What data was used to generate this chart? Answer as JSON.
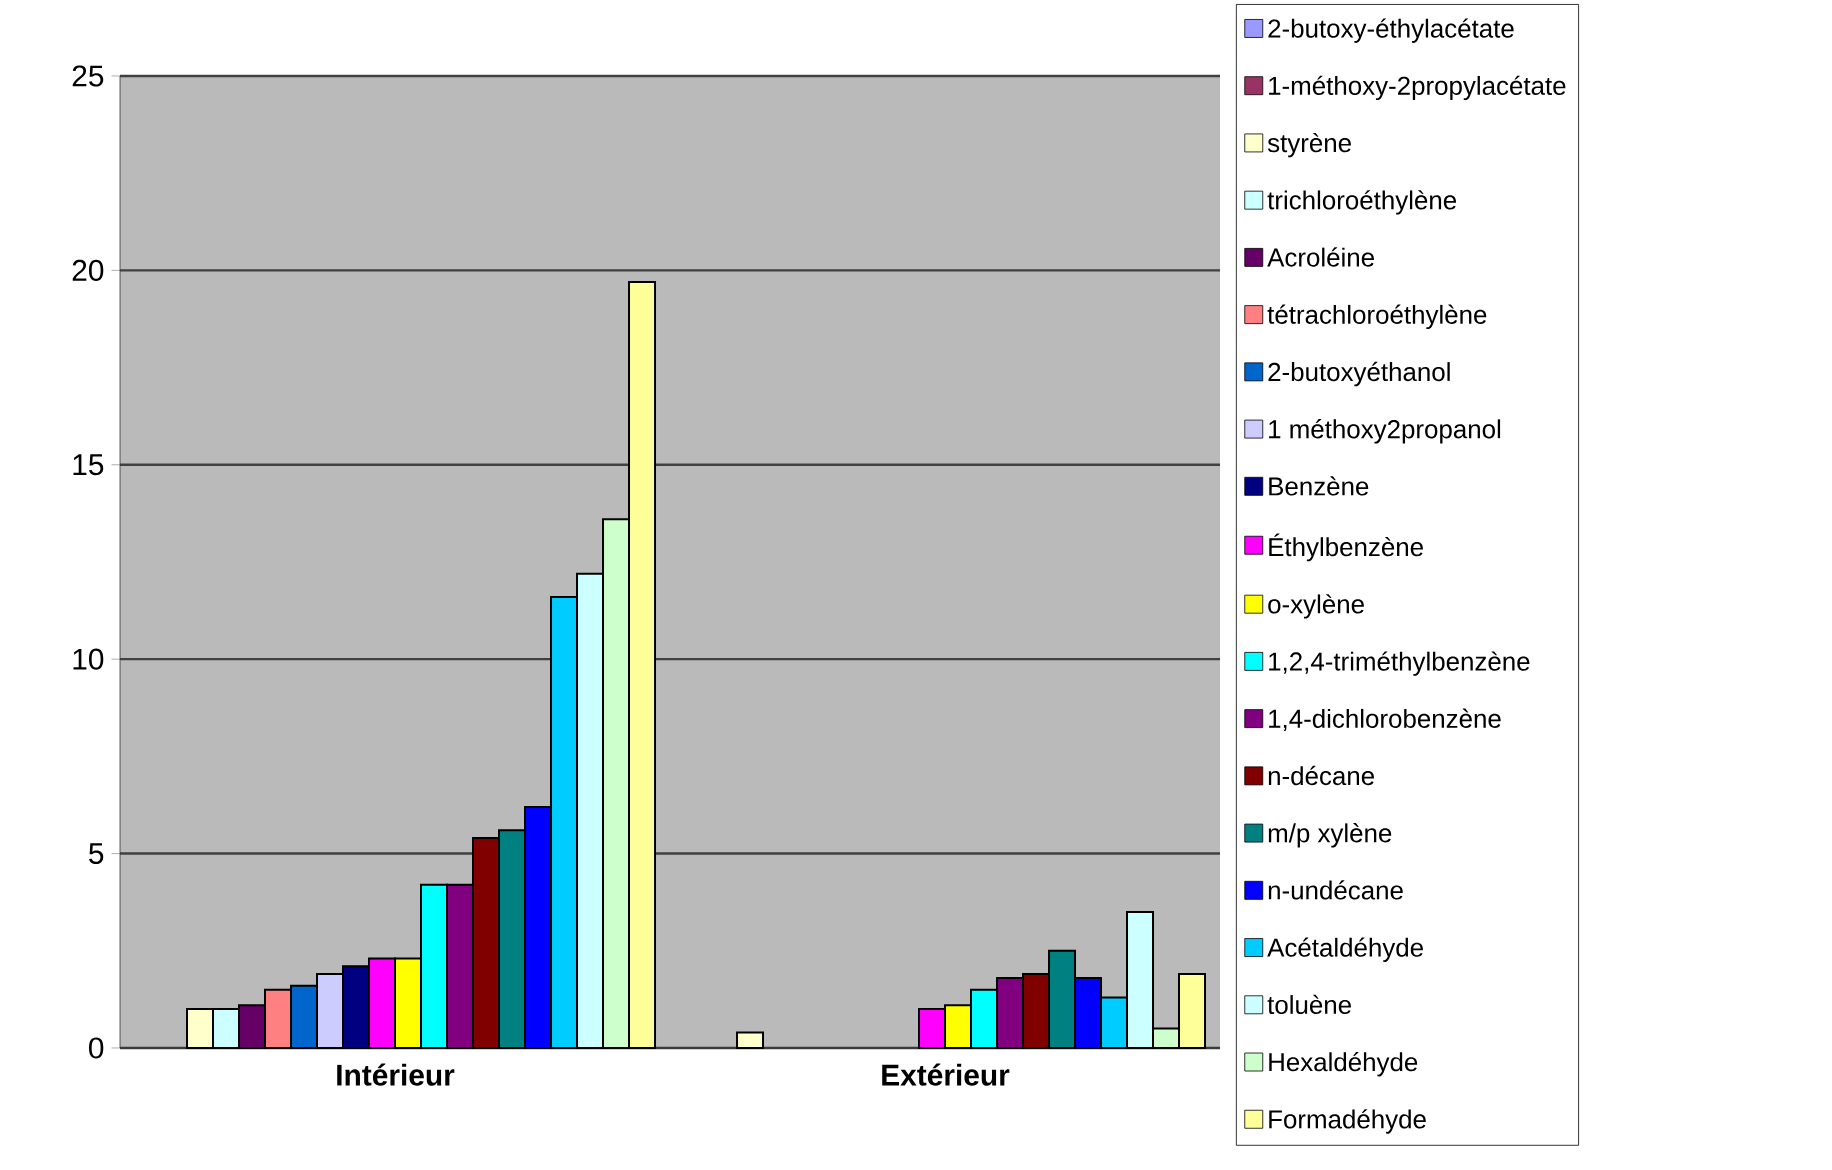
{
  "chart_data": {
    "type": "bar",
    "categories": [
      "Intérieur",
      "Extérieur"
    ],
    "series": [
      {
        "name": "2-butoxy-éthylacétate",
        "color": "#9999ff",
        "values": [
          null,
          null
        ]
      },
      {
        "name": "1-méthoxy-2propylacétate",
        "color": "#993366",
        "values": [
          null,
          null
        ]
      },
      {
        "name": "styrène",
        "color": "#ffffcc",
        "values": [
          1.0,
          0.4
        ]
      },
      {
        "name": "trichloroéthylène",
        "color": "#ccffff",
        "values": [
          1.0,
          null
        ]
      },
      {
        "name": "Acroléine",
        "color": "#660066",
        "values": [
          1.1,
          null
        ]
      },
      {
        "name": "tétrachloroéthylène",
        "color": "#ff8080",
        "values": [
          1.5,
          null
        ]
      },
      {
        "name": "2-butoxyéthanol",
        "color": "#0066cc",
        "values": [
          1.6,
          null
        ]
      },
      {
        "name": "1 méthoxy2propanol",
        "color": "#ccccff",
        "values": [
          1.9,
          null
        ]
      },
      {
        "name": "Benzène",
        "color": "#000080",
        "values": [
          2.1,
          null
        ]
      },
      {
        "name": "Éthylbenzène",
        "color": "#ff00ff",
        "values": [
          2.3,
          1.0
        ]
      },
      {
        "name": "o-xylène",
        "color": "#ffff00",
        "values": [
          2.3,
          1.1
        ]
      },
      {
        "name": "1,2,4-triméthylbenzène",
        "color": "#00ffff",
        "values": [
          4.2,
          1.5
        ]
      },
      {
        "name": "1,4-dichlorobenzène",
        "color": "#800080",
        "values": [
          4.2,
          1.8
        ]
      },
      {
        "name": "n-décane",
        "color": "#800000",
        "values": [
          5.4,
          1.9
        ]
      },
      {
        "name": "m/p xylène",
        "color": "#008080",
        "values": [
          5.6,
          2.5
        ]
      },
      {
        "name": "n-undécane",
        "color": "#0000ff",
        "values": [
          6.2,
          1.8
        ]
      },
      {
        "name": "Acétaldéhyde",
        "color": "#00ccff",
        "values": [
          11.6,
          1.3
        ]
      },
      {
        "name": "toluène",
        "color": "#ccffff",
        "values": [
          12.2,
          3.5
        ]
      },
      {
        "name": "Hexaldéhyde",
        "color": "#ccffcc",
        "values": [
          13.6,
          0.5
        ]
      },
      {
        "name": "Formadéhyde",
        "color": "#ffff99",
        "values": [
          19.7,
          1.9
        ]
      }
    ],
    "ylim": [
      0,
      25
    ],
    "yticks": [
      0,
      5,
      10,
      15,
      20,
      25
    ],
    "grid": "y",
    "legend": "right"
  }
}
